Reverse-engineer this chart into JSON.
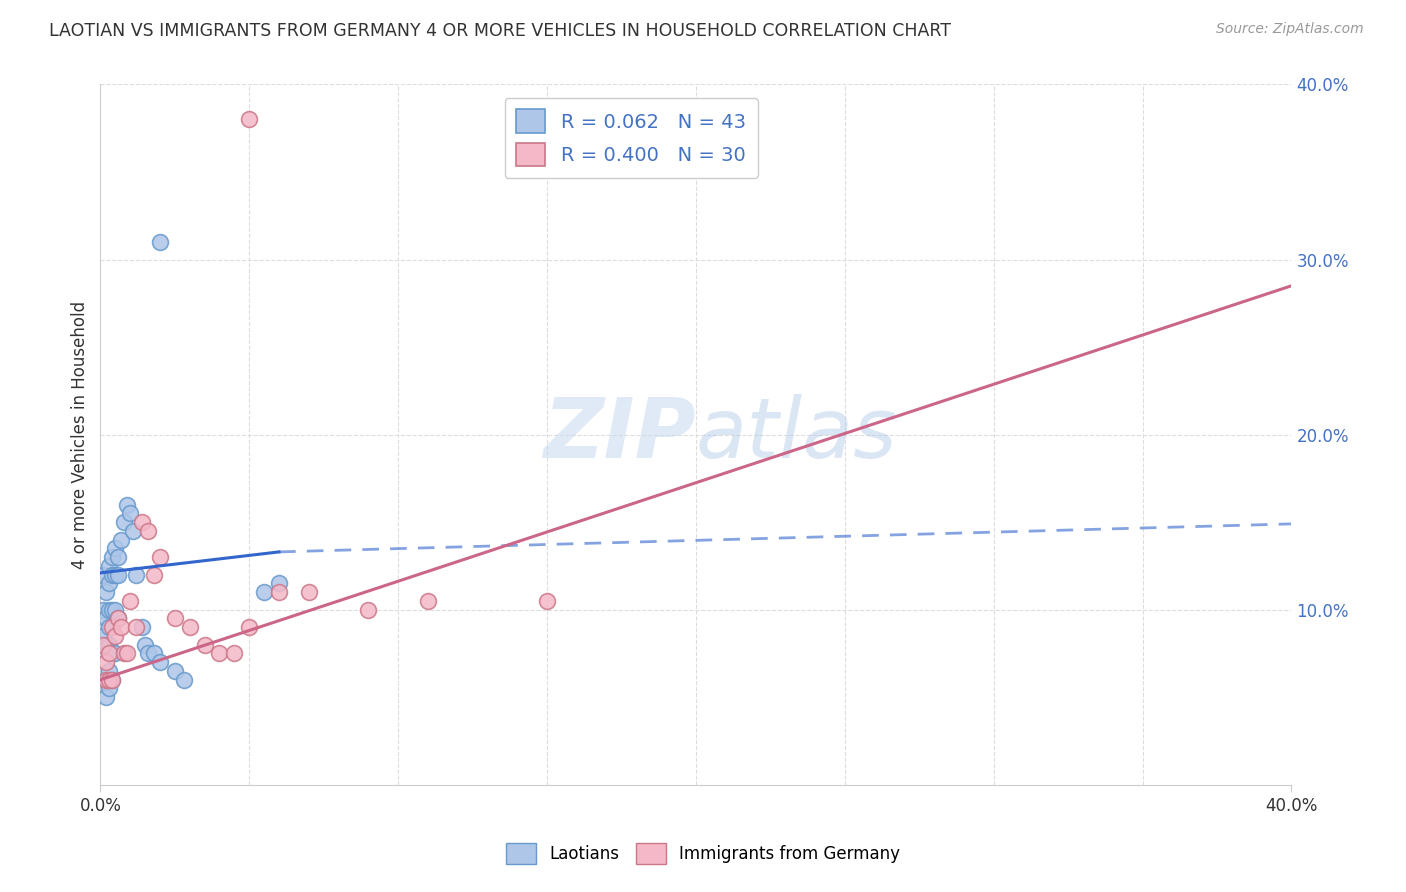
{
  "title": "LAOTIAN VS IMMIGRANTS FROM GERMANY 4 OR MORE VEHICLES IN HOUSEHOLD CORRELATION CHART",
  "source": "Source: ZipAtlas.com",
  "ylabel": "4 or more Vehicles in Household",
  "xlim": [
    0.0,
    0.4
  ],
  "ylim": [
    0.0,
    0.4
  ],
  "grid_color": "#dddddd",
  "background_color": "#ffffff",
  "laotian_color": "#aec6e8",
  "germany_color": "#f4b8c8",
  "laotian_edge_color": "#6699cc",
  "germany_edge_color": "#cc7788",
  "laotian_line_color": "#3366CC",
  "germany_line_color": "#CC6688",
  "R_laotian": 0.062,
  "N_laotian": 43,
  "R_germany": 0.4,
  "N_germany": 30,
  "legend_labels": [
    "Laotians",
    "Immigrants from Germany"
  ],
  "watermark": "ZIPatlas",
  "laotian_x": [
    0.001,
    0.001,
    0.001,
    0.002,
    0.002,
    0.002,
    0.002,
    0.002,
    0.003,
    0.003,
    0.003,
    0.003,
    0.003,
    0.003,
    0.003,
    0.004,
    0.004,
    0.004,
    0.004,
    0.004,
    0.005,
    0.005,
    0.005,
    0.005,
    0.006,
    0.006,
    0.006,
    0.007,
    0.008,
    0.009,
    0.01,
    0.011,
    0.012,
    0.014,
    0.015,
    0.016,
    0.018,
    0.02,
    0.025,
    0.028,
    0.055,
    0.06,
    0.02
  ],
  "laotian_y": [
    0.12,
    0.1,
    0.085,
    0.11,
    0.095,
    0.08,
    0.06,
    0.05,
    0.125,
    0.115,
    0.1,
    0.09,
    0.08,
    0.065,
    0.055,
    0.13,
    0.12,
    0.1,
    0.075,
    0.06,
    0.135,
    0.12,
    0.1,
    0.075,
    0.13,
    0.12,
    0.095,
    0.14,
    0.15,
    0.16,
    0.155,
    0.145,
    0.12,
    0.09,
    0.08,
    0.075,
    0.075,
    0.07,
    0.065,
    0.06,
    0.11,
    0.115,
    0.31
  ],
  "germany_x": [
    0.001,
    0.002,
    0.002,
    0.003,
    0.003,
    0.004,
    0.004,
    0.005,
    0.006,
    0.007,
    0.008,
    0.009,
    0.01,
    0.012,
    0.014,
    0.016,
    0.018,
    0.02,
    0.025,
    0.03,
    0.035,
    0.04,
    0.045,
    0.05,
    0.06,
    0.07,
    0.09,
    0.11,
    0.15,
    0.05
  ],
  "germany_y": [
    0.08,
    0.06,
    0.07,
    0.075,
    0.06,
    0.09,
    0.06,
    0.085,
    0.095,
    0.09,
    0.075,
    0.075,
    0.105,
    0.09,
    0.15,
    0.145,
    0.12,
    0.13,
    0.095,
    0.09,
    0.08,
    0.075,
    0.075,
    0.09,
    0.11,
    0.11,
    0.1,
    0.105,
    0.105,
    0.38
  ],
  "lao_line_x0": 0.0,
  "lao_line_y0": 0.121,
  "lao_line_x1": 0.06,
  "lao_line_y1": 0.133,
  "lao_line_xend": 0.4,
  "lao_line_yend": 0.149,
  "ger_line_x0": 0.0,
  "ger_line_y0": 0.06,
  "ger_line_x1": 0.4,
  "ger_line_y1": 0.285
}
